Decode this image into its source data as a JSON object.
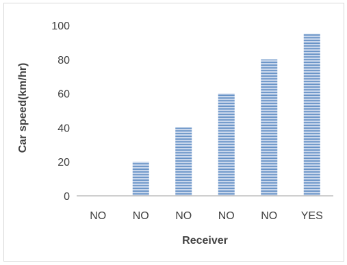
{
  "chart_data": {
    "type": "bar",
    "categories": [
      "NO",
      "NO",
      "NO",
      "NO",
      "NO",
      "YES"
    ],
    "values": [
      0,
      20,
      40,
      60,
      80,
      95
    ],
    "xlabel": "Receiver",
    "ylabel": "Car speed(km/hr)",
    "ylim": [
      0,
      100
    ],
    "yticks": [
      0,
      20,
      40,
      60,
      80,
      100
    ],
    "grid": false,
    "legend": "none",
    "bar_color": "#4f81bd",
    "bar_stripe_color": "#c9d7ec"
  }
}
